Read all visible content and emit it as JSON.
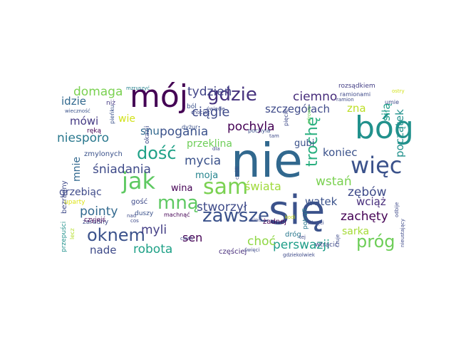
{
  "words": [
    {
      "text": "nie",
      "color": "#31688e"
    },
    {
      "text": "się",
      "color": "#3b528b"
    },
    {
      "text": "bóg",
      "color": "#21918c"
    },
    {
      "text": "mój",
      "color": "#440154"
    },
    {
      "text": "jak",
      "color": "#5ec962"
    },
    {
      "text": "więc",
      "color": "#3b528b"
    },
    {
      "text": "sam",
      "color": "#7ad151"
    },
    {
      "text": "gdzie",
      "color": "#46327e"
    },
    {
      "text": "mną",
      "color": "#5ec962"
    },
    {
      "text": "zawsze",
      "color": "#3b528b"
    },
    {
      "text": "oknem",
      "color": "#3b528b"
    },
    {
      "text": "dość",
      "color": "#1fa187"
    },
    {
      "text": "trochę",
      "color": "#29af7f"
    },
    {
      "text": "próg",
      "color": "#6ece58"
    },
    {
      "text": "ciągle",
      "color": "#3e4a89"
    },
    {
      "text": "tydzień",
      "color": "#414487"
    },
    {
      "text": "domaga",
      "color": "#7ad151"
    },
    {
      "text": "stworzył",
      "color": "#3e4a89"
    },
    {
      "text": "śniadania",
      "color": "#3e4a89"
    },
    {
      "text": "pogania",
      "color": "#3b528b"
    },
    {
      "text": "pointy",
      "color": "#31688e"
    },
    {
      "text": "myli",
      "color": "#433e85"
    },
    {
      "text": "robota",
      "color": "#1fa187"
    },
    {
      "text": "mycia",
      "color": "#3b528b"
    },
    {
      "text": "pochyla",
      "color": "#440154"
    },
    {
      "text": "ciemno",
      "color": "#472d7b"
    },
    {
      "text": "szczegółach",
      "color": "#3e4a89"
    },
    {
      "text": "perswazji",
      "color": "#1f9e89"
    },
    {
      "text": "zachęty",
      "color": "#440154"
    },
    {
      "text": "choć",
      "color": "#8fd744"
    },
    {
      "text": "świata",
      "color": "#9fda3a"
    },
    {
      "text": "wstań",
      "color": "#7ad151"
    },
    {
      "text": "zębów",
      "color": "#3e4a89"
    },
    {
      "text": "sen",
      "color": "#440154"
    },
    {
      "text": "nade",
      "color": "#3e4a89"
    },
    {
      "text": "idzie",
      "color": "#31688e"
    },
    {
      "text": "mówi",
      "color": "#443983"
    },
    {
      "text": "niesporo",
      "color": "#2a788e"
    },
    {
      "text": "przeklina",
      "color": "#6ece58"
    },
    {
      "text": "snu",
      "color": "#31688e"
    },
    {
      "text": "koniec",
      "color": "#3b528b"
    },
    {
      "text": "gubi",
      "color": "#3b528b"
    },
    {
      "text": "wątek",
      "color": "#3b528b"
    },
    {
      "text": "wciąż",
      "color": "#472d7b"
    },
    {
      "text": "siłą",
      "color": "#1f9e89"
    },
    {
      "text": "początek",
      "color": "#21918c"
    },
    {
      "text": "zna",
      "color": "#bddf26"
    },
    {
      "text": "wie",
      "color": "#d2e21b"
    },
    {
      "text": "moja",
      "color": "#25848e"
    },
    {
      "text": "wina",
      "color": "#440154"
    },
    {
      "text": "mnie",
      "color": "#31688e"
    },
    {
      "text": "grzebiąc",
      "color": "#3e4a89"
    },
    {
      "text": "sarka",
      "color": "#a5db36"
    },
    {
      "text": "zmylonych",
      "color": "#3b528b"
    },
    {
      "text": "gość",
      "color": "#3e4a89"
    },
    {
      "text": "żadnej",
      "color": "#440154"
    },
    {
      "text": "częściej",
      "color": "#472d7b"
    },
    {
      "text": "dróg",
      "color": "#2a788e"
    },
    {
      "text": "potrafi",
      "color": "#2a788e"
    },
    {
      "text": "wtrącić",
      "color": "#3e4a89"
    },
    {
      "text": "rozsądkiem",
      "color": "#433e85"
    },
    {
      "text": "ramionami",
      "color": "#3e4a89"
    },
    {
      "text": "bezradny",
      "color": "#3e4a89"
    },
    {
      "text": "zaradny",
      "color": "#3e4a89"
    },
    {
      "text": "machnąć",
      "color": "#440154"
    },
    {
      "text": "duszy",
      "color": "#3b528b"
    },
    {
      "text": "uparty",
      "color": "#dde318"
    },
    {
      "text": "przepuści",
      "color": "#21918c"
    },
    {
      "text": "czyjejś",
      "color": "#440154"
    },
    {
      "text": "ręką",
      "color": "#440154"
    },
    {
      "text": "niż",
      "color": "#443983"
    },
    {
      "text": "okazji",
      "color": "#3e4a89"
    },
    {
      "text": "wieczność",
      "color": "#3b528b"
    },
    {
      "text": "pieńku",
      "color": "#3b528b"
    },
    {
      "text": "mzruszyć",
      "color": "#26828e"
    },
    {
      "text": "ból",
      "color": "#3b528b"
    },
    {
      "text": "dyżur",
      "color": "#3b528b"
    },
    {
      "text": "pochyla",
      "color": "#3b528b"
    },
    {
      "text": "pięcie",
      "color": "#3e4a89"
    },
    {
      "text": "zdrowo",
      "color": "#6ece58"
    },
    {
      "text": "umie",
      "color": "#3e4a89"
    },
    {
      "text": "ostry",
      "color": "#d2e21b"
    },
    {
      "text": "gdziekolwiek",
      "color": "#3e4a89"
    },
    {
      "text": "nieustający",
      "color": "#3e4a89"
    },
    {
      "text": "odbije",
      "color": "#3e4a89"
    },
    {
      "text": "czuje",
      "color": "#3e4a89"
    },
    {
      "text": "wkręci",
      "color": "#3e4a89"
    },
    {
      "text": "święci",
      "color": "#3e4a89"
    },
    {
      "text": "kiniś",
      "color": "#3e4a89"
    },
    {
      "text": "tej",
      "color": "#3e4a89"
    },
    {
      "text": "kodi",
      "color": "#d2e21b"
    },
    {
      "text": "cierń",
      "color": "#3e4a89"
    },
    {
      "text": "tam",
      "color": "#3e4a89"
    },
    {
      "text": "dla",
      "color": "#3e4a89"
    },
    {
      "text": "cos",
      "color": "#3e4a89"
    },
    {
      "text": "lecz",
      "color": "#b5de2b"
    },
    {
      "text": "świecie",
      "color": "#3e4a89"
    },
    {
      "text": "chociaż",
      "color": "#3e4a89"
    },
    {
      "text": "ramion",
      "color": "#3e4a89"
    },
    {
      "text": "cmiłli",
      "color": "#3e4a89"
    },
    {
      "text": "nad",
      "color": "#3e4a89"
    }
  ]
}
